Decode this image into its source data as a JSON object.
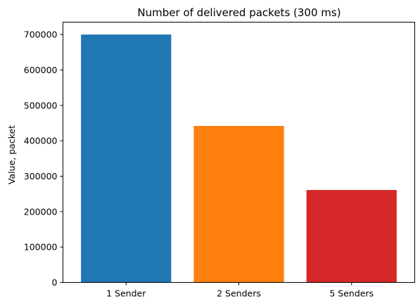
{
  "chart_data": {
    "type": "bar",
    "title": "Number of delivered packets (300 ms)",
    "xlabel": "",
    "ylabel": "Value, packet",
    "categories": [
      "1 Sender",
      "2 Senders",
      "5 Senders"
    ],
    "values": [
      700000,
      442000,
      261000
    ],
    "colors": [
      "#1f77b4",
      "#ff7f0e",
      "#d62728"
    ],
    "ylim": [
      0,
      735000
    ],
    "yticks": [
      0,
      100000,
      200000,
      300000,
      400000,
      500000,
      600000,
      700000
    ],
    "ytick_labels": [
      "0",
      "100000",
      "200000",
      "300000",
      "400000",
      "500000",
      "600000",
      "700000"
    ],
    "grid": false,
    "legend": "none"
  }
}
